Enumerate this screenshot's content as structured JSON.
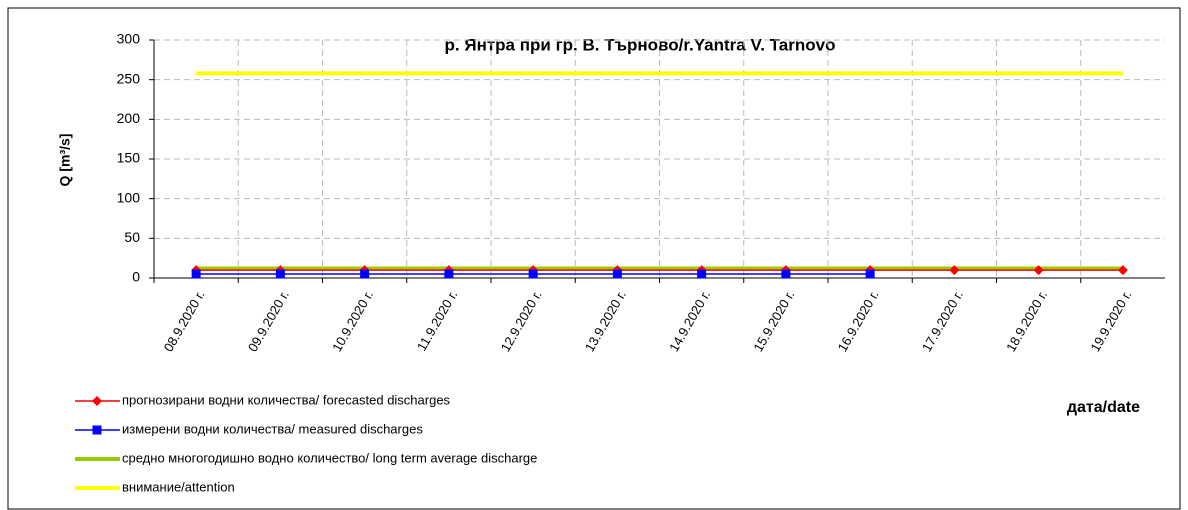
{
  "chart_data": {
    "type": "line",
    "title": "р. Янтра при гр. В. Търново/r.Yantra V. Tarnovo",
    "y_label": "Q [m³/s]",
    "x_label": "дата/date",
    "categories": [
      "08.9.2020 г.",
      "09.9.2020 г.",
      "10.9.2020 г.",
      "11.9.2020 г.",
      "12.9.2020 г.",
      "13.9.2020 г.",
      "14.9.2020 г.",
      "15.9.2020 г.",
      "16.9.2020 г.",
      "17.9.2020 г.",
      "18.9.2020 г.",
      "19.9.2020 г."
    ],
    "series": [
      {
        "name": "прогнозирани водни количества/ forecasted discharges",
        "color": "#ff0000",
        "marker": "diamond",
        "values": [
          10,
          10,
          10,
          10,
          10,
          10,
          10,
          10,
          10,
          10,
          10,
          10
        ]
      },
      {
        "name": "измерени водни количества/ measured discharges",
        "color": "#0000ff",
        "marker": "square",
        "values": [
          5,
          5,
          5,
          5,
          5,
          5,
          5,
          5,
          5,
          null,
          null,
          null
        ]
      },
      {
        "name": "средно многогодишно водно количество/ long term average discharge",
        "color": "#99cc00",
        "values": [
          12,
          12,
          12,
          12,
          12,
          12,
          12,
          12,
          12,
          12,
          12,
          12
        ]
      },
      {
        "name": "внимание/attention",
        "color": "#ffff00",
        "values": [
          258,
          258,
          258,
          258,
          258,
          258,
          258,
          258,
          258,
          258,
          258,
          258
        ]
      }
    ],
    "ylim": [
      0,
      300
    ],
    "yticks": [
      0,
      50,
      100,
      150,
      200,
      250,
      300
    ],
    "grid": true
  }
}
